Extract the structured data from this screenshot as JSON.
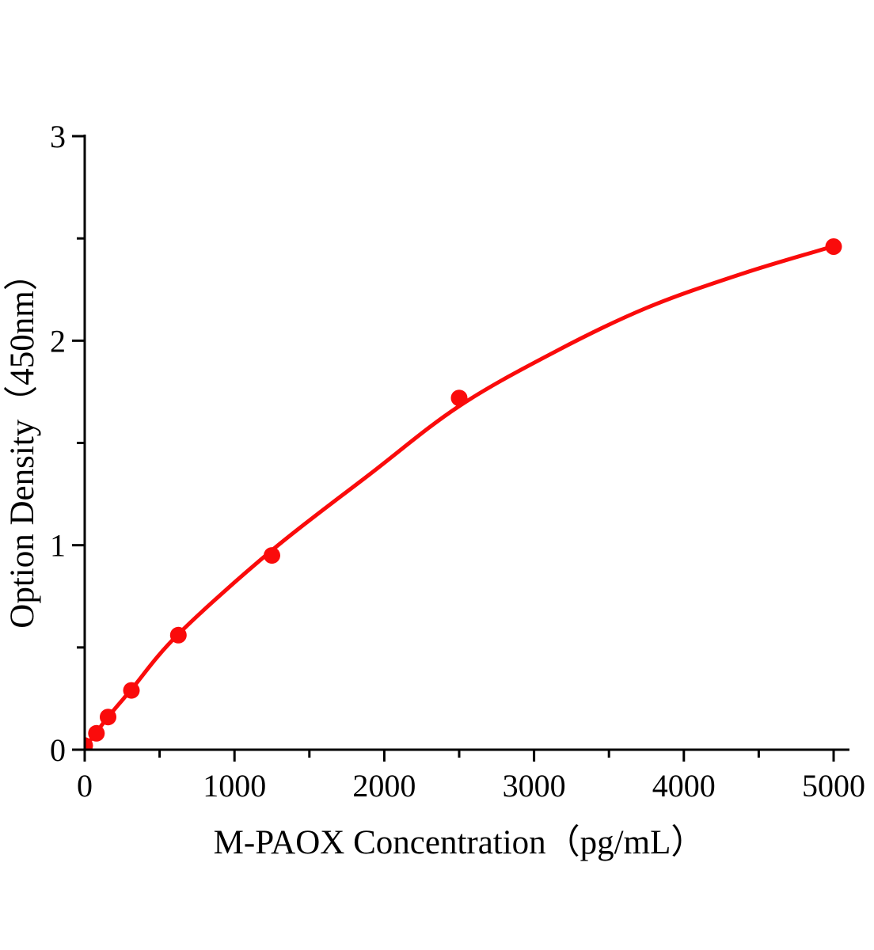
{
  "figure": {
    "background": "#ffffff"
  },
  "chart_data": {
    "type": "scatter",
    "title": "",
    "xlabel": "M-PAOX Concentration（pg/mL）",
    "ylabel": "Option Density（450nm）",
    "xlim": [
      0,
      5100
    ],
    "ylim": [
      0,
      3
    ],
    "x_major_ticks": [
      0,
      1000,
      2000,
      3000,
      4000,
      5000
    ],
    "x_minor_ticks": [
      500,
      1500,
      2500,
      3500,
      4500
    ],
    "y_major_ticks": [
      0,
      1,
      2,
      3
    ],
    "y_minor_ticks": [
      0.5,
      1.5,
      2.5
    ],
    "grid": false,
    "legend": null,
    "points": [
      [
        0,
        0.02
      ],
      [
        78,
        0.08
      ],
      [
        156,
        0.16
      ],
      [
        312,
        0.29
      ],
      [
        625,
        0.56
      ],
      [
        1250,
        0.95
      ],
      [
        2500,
        1.72
      ],
      [
        5000,
        2.46
      ]
    ],
    "curve": [
      [
        0,
        0.01
      ],
      [
        78,
        0.085
      ],
      [
        156,
        0.16
      ],
      [
        312,
        0.295
      ],
      [
        625,
        0.565
      ],
      [
        1250,
        0.975
      ],
      [
        1900,
        1.345
      ],
      [
        2500,
        1.68
      ],
      [
        3150,
        1.95
      ],
      [
        3750,
        2.16
      ],
      [
        4400,
        2.33
      ],
      [
        5000,
        2.462
      ]
    ],
    "curve_color": "#fa0b0b",
    "point_color": "#fa0b0b",
    "axis_color": "#000000"
  }
}
